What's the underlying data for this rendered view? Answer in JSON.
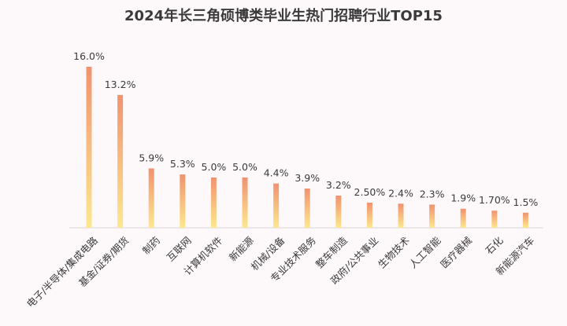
{
  "chart_data": {
    "type": "bar",
    "title": "2024年长三角硕博类毕业生热门招聘行业TOP15",
    "categories": [
      "电子/半导体/集成电路",
      "基金/证券/期货",
      "制药",
      "互联网",
      "计算机软件",
      "新能源",
      "机械/设备",
      "专业技术服务",
      "整车制造",
      "政府/公共事业",
      "生物技术",
      "人工智能",
      "医疗器械",
      "石化",
      "新能源汽车"
    ],
    "values": [
      16.0,
      13.2,
      5.9,
      5.3,
      5.0,
      5.0,
      4.4,
      3.9,
      3.2,
      2.5,
      2.4,
      2.3,
      1.9,
      1.7,
      1.5
    ],
    "data_labels": [
      "16.0%",
      "13.2%",
      "5.9%",
      "5.3%",
      "5.0%",
      "5.0%",
      "4.4%",
      "3.9%",
      "3.2%",
      "2.50%",
      "2.4%",
      "2.3%",
      "1.9%",
      "1.70%",
      "1.5%"
    ],
    "ylim": [
      0,
      16
    ],
    "grid": false,
    "legend": "none",
    "colors": {
      "bar_top": "#f19270",
      "bar_bottom": "#fde88e",
      "text": "#3a3a3a",
      "axis": "#d9d4d4"
    }
  }
}
